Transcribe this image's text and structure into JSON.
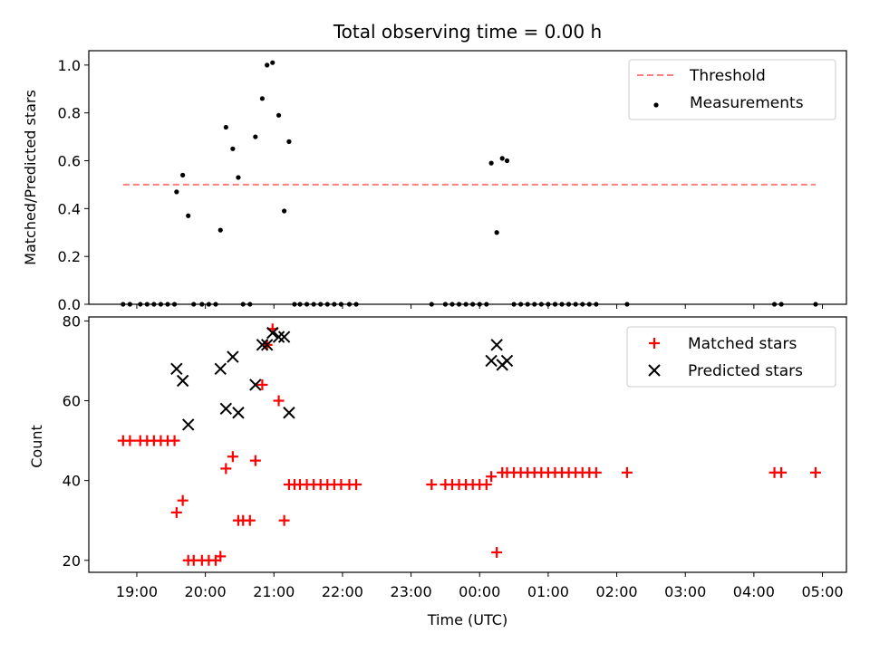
{
  "chart_data": [
    {
      "type": "scatter",
      "title": "Total observing time = 0.00 h",
      "ylabel": "Matched/Predicted stars",
      "xlabel": "",
      "ylim": [
        0.0,
        1.06
      ],
      "xlim_hours": [
        18.3,
        29.35
      ],
      "yticks": [
        0.0,
        0.2,
        0.4,
        0.6,
        0.8,
        1.0
      ],
      "ytick_labels": [
        "0.0",
        "0.2",
        "0.4",
        "0.6",
        "0.8",
        "1.0"
      ],
      "threshold": {
        "value": 0.5,
        "x_range_hours": [
          18.8,
          28.9
        ],
        "color": "#ff7f7f"
      },
      "legend": {
        "placement": "top-right",
        "entries": [
          "Threshold",
          "Measurements"
        ]
      },
      "series": [
        {
          "name": "Measurements",
          "marker": "dot",
          "color": "#000000",
          "x_hours": [
            18.8,
            18.9,
            19.05,
            19.15,
            19.25,
            19.35,
            19.45,
            19.55,
            19.58,
            19.67,
            19.75,
            19.83,
            19.95,
            20.05,
            20.15,
            20.22,
            20.3,
            20.4,
            20.48,
            20.55,
            20.65,
            20.73,
            20.83,
            20.9,
            20.98,
            21.07,
            21.15,
            21.22,
            21.3,
            21.38,
            21.48,
            21.58,
            21.68,
            21.78,
            21.88,
            21.98,
            22.1,
            22.2,
            23.3,
            23.5,
            23.6,
            23.7,
            23.8,
            23.9,
            24.0,
            24.1,
            24.17,
            24.25,
            24.33,
            24.4,
            24.5,
            24.6,
            24.7,
            24.8,
            24.9,
            25.0,
            25.1,
            25.2,
            25.3,
            25.4,
            25.5,
            25.6,
            25.7,
            26.15,
            28.3,
            28.4,
            28.9
          ],
          "y": [
            0,
            0,
            0,
            0,
            0,
            0,
            0,
            0,
            0.47,
            0.54,
            0.37,
            0,
            0,
            0,
            0,
            0.31,
            0.74,
            0.65,
            0.53,
            0,
            0,
            0.7,
            0.86,
            1.0,
            1.01,
            0.79,
            0.39,
            0.68,
            0,
            0,
            0,
            0,
            0,
            0,
            0,
            0,
            0,
            0,
            0,
            0,
            0,
            0,
            0,
            0,
            0,
            0,
            0.59,
            0.3,
            0.61,
            0.6,
            0,
            0,
            0,
            0,
            0,
            0,
            0,
            0,
            0,
            0,
            0,
            0,
            0,
            0,
            0,
            0,
            0
          ]
        }
      ]
    },
    {
      "type": "scatter",
      "title": "",
      "xlabel": "Time (UTC)",
      "ylabel": "Count",
      "ylim": [
        17,
        81
      ],
      "xlim_hours": [
        18.3,
        29.35
      ],
      "yticks": [
        20,
        40,
        60,
        80
      ],
      "ytick_labels": [
        "20",
        "40",
        "60",
        "80"
      ],
      "xticks_hours": [
        19,
        20,
        21,
        22,
        23,
        24,
        25,
        26,
        27,
        28,
        29
      ],
      "xtick_labels": [
        "19:00",
        "20:00",
        "21:00",
        "22:00",
        "23:00",
        "00:00",
        "01:00",
        "02:00",
        "03:00",
        "04:00",
        "05:00"
      ],
      "legend": {
        "placement": "top-right",
        "entries": [
          "Matched stars",
          "Predicted stars"
        ]
      },
      "series": [
        {
          "name": "Matched stars",
          "marker": "plus",
          "color": "#ff0000",
          "x_hours": [
            18.8,
            18.9,
            19.05,
            19.15,
            19.25,
            19.35,
            19.45,
            19.55,
            19.58,
            19.67,
            19.75,
            19.83,
            19.95,
            20.05,
            20.15,
            20.22,
            20.3,
            20.4,
            20.48,
            20.55,
            20.65,
            20.73,
            20.83,
            20.9,
            20.98,
            21.07,
            21.15,
            21.22,
            21.3,
            21.38,
            21.48,
            21.58,
            21.68,
            21.78,
            21.88,
            21.98,
            22.1,
            22.2,
            23.3,
            23.5,
            23.6,
            23.7,
            23.8,
            23.9,
            24.0,
            24.1,
            24.17,
            24.25,
            24.33,
            24.4,
            24.5,
            24.6,
            24.7,
            24.8,
            24.9,
            25.0,
            25.1,
            25.2,
            25.3,
            25.4,
            25.5,
            25.6,
            25.7,
            26.15,
            28.3,
            28.4,
            28.9
          ],
          "y": [
            50,
            50,
            50,
            50,
            50,
            50,
            50,
            50,
            32,
            35,
            20,
            20,
            20,
            20,
            20,
            21,
            43,
            46,
            30,
            30,
            30,
            45,
            64,
            74,
            78,
            60,
            30,
            39,
            39,
            39,
            39,
            39,
            39,
            39,
            39,
            39,
            39,
            39,
            39,
            39,
            39,
            39,
            39,
            39,
            39,
            39,
            41,
            22,
            42,
            42,
            42,
            42,
            42,
            42,
            42,
            42,
            42,
            42,
            42,
            42,
            42,
            42,
            42,
            42,
            42,
            42,
            42
          ]
        },
        {
          "name": "Predicted stars",
          "marker": "cross",
          "color": "#000000",
          "x_hours": [
            19.58,
            19.67,
            19.75,
            20.22,
            20.3,
            20.4,
            20.48,
            20.73,
            20.83,
            20.9,
            20.98,
            21.07,
            21.15,
            21.22,
            24.17,
            24.25,
            24.33,
            24.4
          ],
          "y": [
            68,
            65,
            54,
            68,
            58,
            71,
            57,
            64,
            74,
            74,
            77,
            76,
            76,
            57,
            70,
            74,
            69,
            70
          ]
        }
      ]
    }
  ]
}
